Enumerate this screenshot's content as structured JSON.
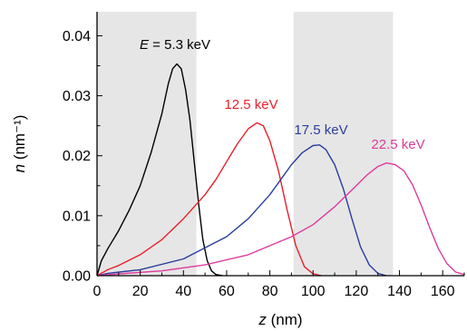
{
  "chart_data": {
    "type": "line",
    "xlabel": "z (nm)",
    "ylabel": "n (nm⁻¹)",
    "xlim": [
      0,
      170
    ],
    "ylim": [
      0,
      0.044
    ],
    "xticks": [
      "0",
      "20",
      "40",
      "60",
      "80",
      "100",
      "120",
      "140",
      "160"
    ],
    "yticks": [
      "0.00",
      "0.01",
      "0.02",
      "0.03",
      "0.04"
    ],
    "grid": false,
    "shaded_regions": [
      [
        0,
        46
      ],
      [
        91,
        137
      ]
    ],
    "shade_color": "#e6e6e6",
    "series": [
      {
        "name": "E = 5.3 keV",
        "label_prefix": "E",
        "label_rest": " = 5.3 keV",
        "color": "#000000",
        "points": [
          [
            0,
            0
          ],
          [
            2,
            0.0025
          ],
          [
            5,
            0.0045
          ],
          [
            10,
            0.0075
          ],
          [
            15,
            0.011
          ],
          [
            20,
            0.015
          ],
          [
            25,
            0.0205
          ],
          [
            30,
            0.027
          ],
          [
            33,
            0.032
          ],
          [
            35,
            0.0345
          ],
          [
            37,
            0.0353
          ],
          [
            39,
            0.0345
          ],
          [
            41,
            0.031
          ],
          [
            43,
            0.026
          ],
          [
            45,
            0.019
          ],
          [
            47,
            0.012
          ],
          [
            49,
            0.006
          ],
          [
            51,
            0.0025
          ],
          [
            53,
            0.0008
          ],
          [
            55,
            0.0002
          ],
          [
            58,
            0
          ]
        ]
      },
      {
        "name": "12.5 keV",
        "color": "#e8202a",
        "points": [
          [
            0,
            0
          ],
          [
            5,
            0.001
          ],
          [
            10,
            0.0017
          ],
          [
            20,
            0.0035
          ],
          [
            30,
            0.006
          ],
          [
            40,
            0.0095
          ],
          [
            50,
            0.0135
          ],
          [
            55,
            0.016
          ],
          [
            60,
            0.019
          ],
          [
            65,
            0.022
          ],
          [
            70,
            0.0245
          ],
          [
            74,
            0.0255
          ],
          [
            77,
            0.025
          ],
          [
            80,
            0.0225
          ],
          [
            84,
            0.0175
          ],
          [
            88,
            0.011
          ],
          [
            92,
            0.005
          ],
          [
            96,
            0.0015
          ],
          [
            100,
            0.0003
          ],
          [
            104,
            0
          ]
        ]
      },
      {
        "name": "17.5 keV",
        "color": "#2b3d9c",
        "points": [
          [
            0,
            0
          ],
          [
            5,
            0.0004
          ],
          [
            20,
            0.001
          ],
          [
            40,
            0.0028
          ],
          [
            60,
            0.0065
          ],
          [
            70,
            0.0095
          ],
          [
            80,
            0.0135
          ],
          [
            85,
            0.016
          ],
          [
            90,
            0.0185
          ],
          [
            95,
            0.0205
          ],
          [
            100,
            0.0217
          ],
          [
            103,
            0.0218
          ],
          [
            106,
            0.021
          ],
          [
            110,
            0.0185
          ],
          [
            114,
            0.0145
          ],
          [
            118,
            0.0095
          ],
          [
            122,
            0.0048
          ],
          [
            126,
            0.0018
          ],
          [
            130,
            0.0004
          ],
          [
            134,
            0
          ]
        ]
      },
      {
        "name": "22.5 keV",
        "color": "#dd3c9b",
        "points": [
          [
            0,
            0
          ],
          [
            10,
            0.0003
          ],
          [
            30,
            0.0008
          ],
          [
            50,
            0.0018
          ],
          [
            70,
            0.0035
          ],
          [
            90,
            0.0065
          ],
          [
            100,
            0.0085
          ],
          [
            110,
            0.0115
          ],
          [
            120,
            0.015
          ],
          [
            125,
            0.0168
          ],
          [
            130,
            0.0182
          ],
          [
            134,
            0.0188
          ],
          [
            138,
            0.0185
          ],
          [
            142,
            0.0175
          ],
          [
            146,
            0.0152
          ],
          [
            150,
            0.0118
          ],
          [
            154,
            0.008
          ],
          [
            158,
            0.0045
          ],
          [
            162,
            0.002
          ],
          [
            166,
            0.0006
          ],
          [
            170,
            0.0002
          ]
        ]
      }
    ]
  }
}
